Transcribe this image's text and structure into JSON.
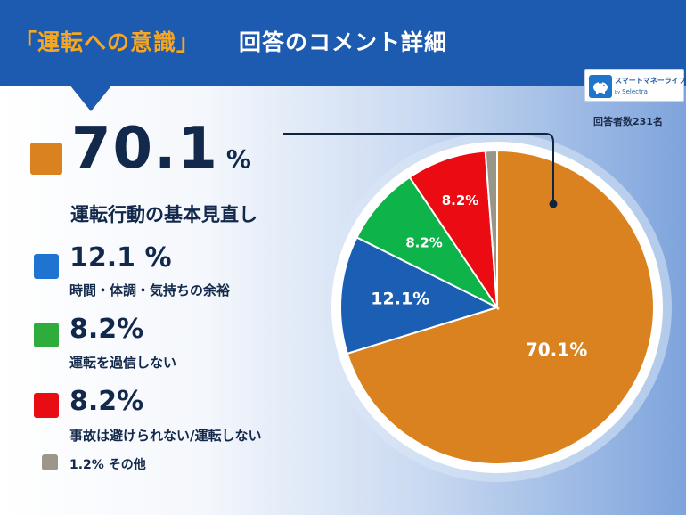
{
  "header": {
    "title_accent": "「運転への意識」",
    "title_main": "回答のコメント詳細"
  },
  "logo": {
    "brand": "スマートマネーライフ",
    "by": "by",
    "sub": "Selectra"
  },
  "respondents": "回答者数231名",
  "legend": [
    {
      "percent": "70.1",
      "unit": "%",
      "label": "運転行動の基本見直し",
      "color": "#d9821f"
    },
    {
      "percent": "12.1 %",
      "label": "時間・体調・気持ちの余裕",
      "color": "#1f74d1"
    },
    {
      "percent": "8.2%",
      "label": "運転を過信しない",
      "color": "#2eac3c"
    },
    {
      "percent": "8.2%",
      "label": "事故は避けられない/運転しない",
      "color": "#e80d13"
    },
    {
      "percent": "1.2%",
      "label": "その他",
      "color": "#9e9689"
    }
  ],
  "chart_data": {
    "type": "pie",
    "slices": [
      {
        "label": "運転行動の基本見直し",
        "value": 70.1,
        "display": "70.1%",
        "color": "#d9821f"
      },
      {
        "label": "時間・体調・気持ちの余裕",
        "value": 12.1,
        "display": "12.1%",
        "color": "#1b5fb5"
      },
      {
        "label": "運転を過信しない",
        "value": 8.2,
        "display": "8.2%",
        "color": "#0eb34a"
      },
      {
        "label": "事故は避けられない/運転しない",
        "value": 8.2,
        "display": "8.2%",
        "color": "#ea0c12"
      },
      {
        "label": "その他",
        "value": 1.2,
        "display": "",
        "color": "#9a9589"
      }
    ],
    "start_angle_deg": 0,
    "direction": "clockwise",
    "legend_position": "left"
  }
}
